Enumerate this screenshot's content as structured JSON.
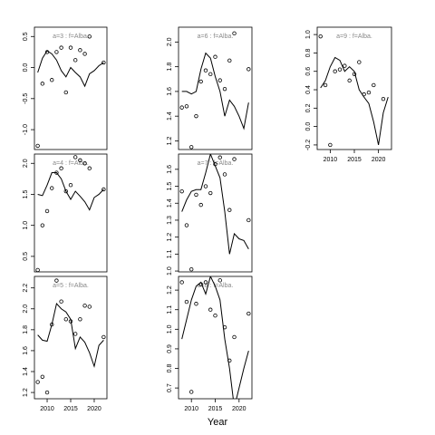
{
  "xlabel": "Year",
  "chart_data": [
    {
      "type": "scatter-line",
      "title": "a=3 : f=Alba.",
      "x": [
        2008,
        2009,
        2010,
        2011,
        2012,
        2013,
        2014,
        2015,
        2016,
        2017,
        2018,
        2019,
        2020,
        2021,
        2022
      ],
      "points": [
        -1.26,
        -0.26,
        0.25,
        -0.2,
        0.25,
        0.32,
        -0.4,
        0.32,
        0.12,
        0.28,
        0.22,
        0.5,
        null,
        null,
        0.08
      ],
      "line": [
        -0.08,
        0.15,
        0.27,
        0.22,
        0.12,
        -0.05,
        -0.15,
        0.0,
        -0.08,
        -0.15,
        -0.3,
        -0.1,
        -0.05,
        0.03,
        0.08
      ],
      "xlim": [
        2007.3,
        2022.7
      ],
      "ylim": [
        -1.32,
        0.65
      ],
      "yticks": [
        {
          "value": -1.0,
          "label": "-1.0"
        },
        {
          "value": -0.5,
          "label": "-0.5"
        },
        {
          "value": 0.0,
          "label": "0.0"
        },
        {
          "value": 0.5,
          "label": "0.5"
        }
      ]
    },
    {
      "type": "scatter-line",
      "title": "a=6 : f=Alba.",
      "x": [
        2008,
        2009,
        2010,
        2011,
        2012,
        2013,
        2014,
        2015,
        2016,
        2017,
        2018,
        2019,
        2020,
        2021,
        2022
      ],
      "points": [
        1.47,
        1.48,
        1.15,
        1.4,
        1.68,
        1.77,
        1.74,
        1.88,
        1.69,
        1.62,
        1.85,
        2.07,
        null,
        null,
        1.78
      ],
      "line": [
        1.6,
        1.6,
        1.58,
        1.6,
        1.78,
        1.91,
        1.87,
        1.72,
        1.6,
        1.4,
        1.53,
        1.48,
        1.4,
        1.3,
        1.51
      ],
      "xlim": [
        2007.3,
        2022.7
      ],
      "ylim": [
        1.13,
        2.12
      ],
      "yticks": [
        1.2,
        1.4,
        1.6,
        1.8,
        {
          "value": 2.0,
          "label": "2.0"
        }
      ]
    },
    {
      "type": "scatter-line",
      "title": "a=9 : f=Alba.",
      "x": [
        2008,
        2009,
        2010,
        2011,
        2012,
        2013,
        2014,
        2015,
        2016,
        2017,
        2018,
        2019,
        2020,
        2021,
        2022
      ],
      "points": [
        0.98,
        0.45,
        -0.2,
        0.6,
        0.62,
        0.66,
        0.5,
        0.57,
        0.7,
        0.35,
        0.37,
        0.45,
        null,
        0.3,
        null
      ],
      "line": [
        0.42,
        0.5,
        0.65,
        0.75,
        0.72,
        0.6,
        0.65,
        0.6,
        0.4,
        0.32,
        0.25,
        0.05,
        -0.2,
        0.15,
        0.32
      ],
      "xlim": [
        2007.3,
        2022.7
      ],
      "ylim": [
        -0.25,
        1.08
      ],
      "yticks": [
        -0.2,
        {
          "value": 0.0,
          "label": "0.0"
        },
        0.2,
        0.4,
        0.6,
        0.8,
        {
          "value": 1.0,
          "label": "1.0"
        }
      ],
      "xticks": [
        2010,
        2015,
        2020
      ]
    },
    {
      "type": "scatter-line",
      "title": "a=4 : f=Alba.",
      "x": [
        2008,
        2009,
        2010,
        2011,
        2012,
        2013,
        2014,
        2015,
        2016,
        2017,
        2018,
        2019,
        2020,
        2021,
        2022
      ],
      "points": [
        0.28,
        1.0,
        1.23,
        1.6,
        1.85,
        1.92,
        1.55,
        1.65,
        2.1,
        2.05,
        2.0,
        1.92,
        null,
        null,
        1.58
      ],
      "line": [
        1.5,
        1.48,
        1.65,
        1.85,
        1.85,
        1.75,
        1.55,
        1.42,
        1.55,
        1.47,
        1.38,
        1.25,
        1.45,
        1.5,
        1.58
      ],
      "xlim": [
        2007.3,
        2022.7
      ],
      "ylim": [
        0.25,
        2.15
      ],
      "yticks": [
        0.5,
        {
          "value": 1.0,
          "label": "1.0"
        },
        1.5,
        {
          "value": 2.0,
          "label": "2.0"
        }
      ]
    },
    {
      "type": "scatter-line",
      "title": "a=7 : f=Alba.",
      "x": [
        2008,
        2009,
        2010,
        2011,
        2012,
        2013,
        2014,
        2015,
        2016,
        2017,
        2018,
        2019,
        2020,
        2021,
        2022
      ],
      "points": [
        1.47,
        1.27,
        1.01,
        1.45,
        1.39,
        1.5,
        1.46,
        1.63,
        1.67,
        1.57,
        1.36,
        1.66,
        null,
        null,
        1.3
      ],
      "line": [
        1.35,
        1.42,
        1.47,
        1.48,
        1.48,
        1.58,
        1.69,
        1.62,
        1.55,
        1.35,
        1.1,
        1.22,
        1.19,
        1.18,
        1.13
      ],
      "xlim": [
        2007.3,
        2022.7
      ],
      "ylim": [
        0.995,
        1.69
      ],
      "yticks": [
        {
          "value": 1.0,
          "label": "1.0"
        },
        1.1,
        1.2,
        1.3,
        1.4,
        1.5,
        1.6
      ]
    },
    {
      "type": "scatter-line",
      "title": "a=5 : f=Alba.",
      "x": [
        2008,
        2009,
        2010,
        2011,
        2012,
        2013,
        2014,
        2015,
        2016,
        2017,
        2018,
        2019,
        2020,
        2021,
        2022
      ],
      "points": [
        1.3,
        1.35,
        1.2,
        1.85,
        2.27,
        2.07,
        1.9,
        1.88,
        1.76,
        1.9,
        2.03,
        2.02,
        null,
        null,
        1.73
      ],
      "line": [
        1.75,
        1.7,
        1.69,
        1.85,
        2.05,
        2.0,
        1.97,
        1.9,
        1.62,
        1.73,
        1.68,
        1.58,
        1.45,
        1.65,
        1.7
      ],
      "xlim": [
        2007.3,
        2022.7
      ],
      "ylim": [
        1.14,
        2.31
      ],
      "yticks": [
        1.2,
        1.4,
        1.6,
        1.8,
        {
          "value": 2.0,
          "label": "2.0"
        },
        2.2
      ],
      "xticks": [
        2010,
        2015,
        2020
      ]
    },
    {
      "type": "scatter-line",
      "title": "a=8 : f=Alba.",
      "x": [
        2008,
        2009,
        2010,
        2011,
        2012,
        2013,
        2014,
        2015,
        2016,
        2017,
        2018,
        2019,
        2020,
        2021,
        2022
      ],
      "points": [
        1.24,
        1.14,
        0.68,
        1.13,
        1.23,
        1.24,
        1.1,
        1.07,
        1.25,
        1.01,
        0.84,
        0.96,
        null,
        null,
        1.08
      ],
      "line": [
        0.95,
        1.05,
        1.15,
        1.22,
        1.24,
        1.18,
        1.27,
        1.22,
        1.15,
        0.95,
        0.8,
        0.6,
        0.7,
        0.8,
        0.89
      ],
      "xlim": [
        2007.3,
        2022.7
      ],
      "ylim": [
        0.645,
        1.27
      ],
      "yticks": [
        0.7,
        0.8,
        0.9,
        {
          "value": 1.0,
          "label": "1.0"
        },
        1.1,
        1.2
      ],
      "xticks": [
        2010,
        2015,
        2020
      ]
    }
  ]
}
